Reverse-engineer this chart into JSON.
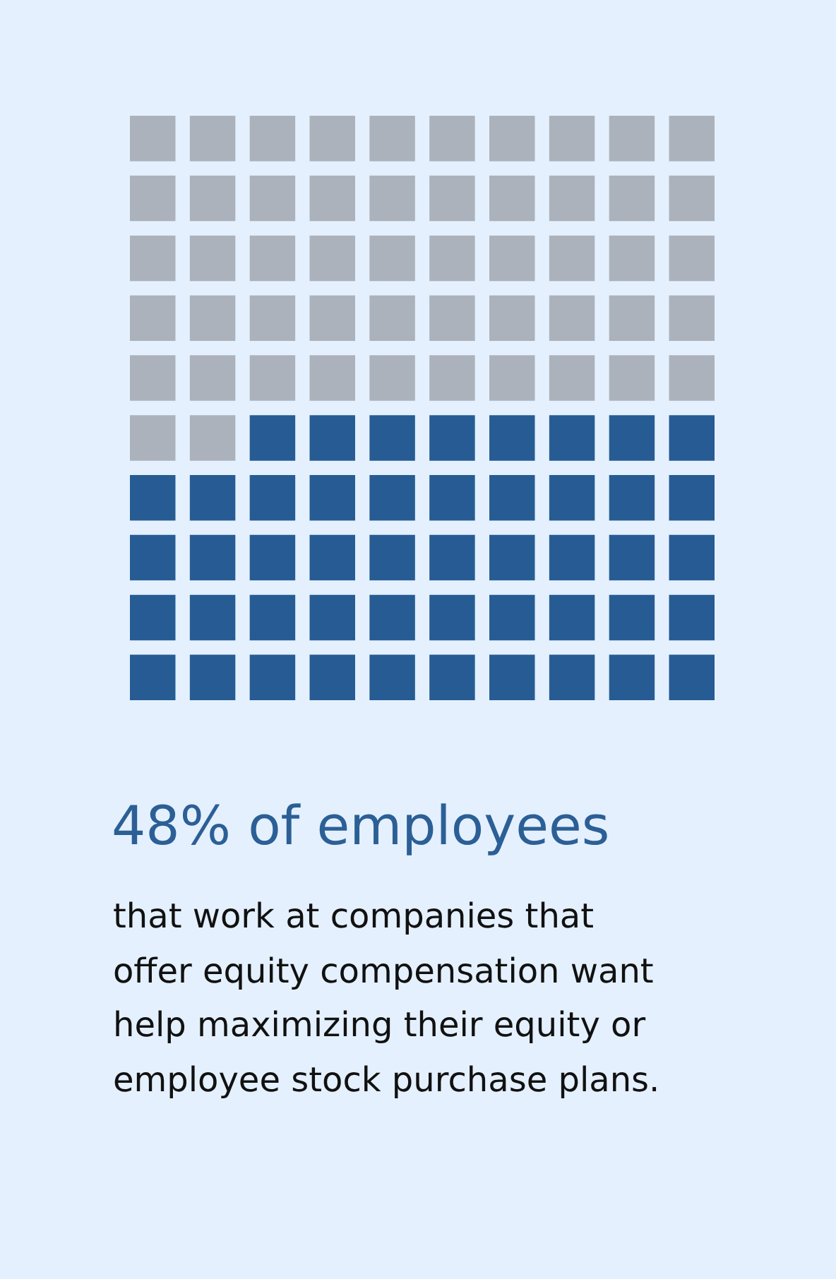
{
  "chart_data": {
    "type": "other",
    "title": "of employees",
    "subtitle": "that work at companies that offer equity compensation want help maximizing their equity or employee stock purchase plans.",
    "values": [
      48
    ],
    "value_labels": [
      "48%"
    ],
    "colors": [
      "#265c93"
    ]
  }
}
